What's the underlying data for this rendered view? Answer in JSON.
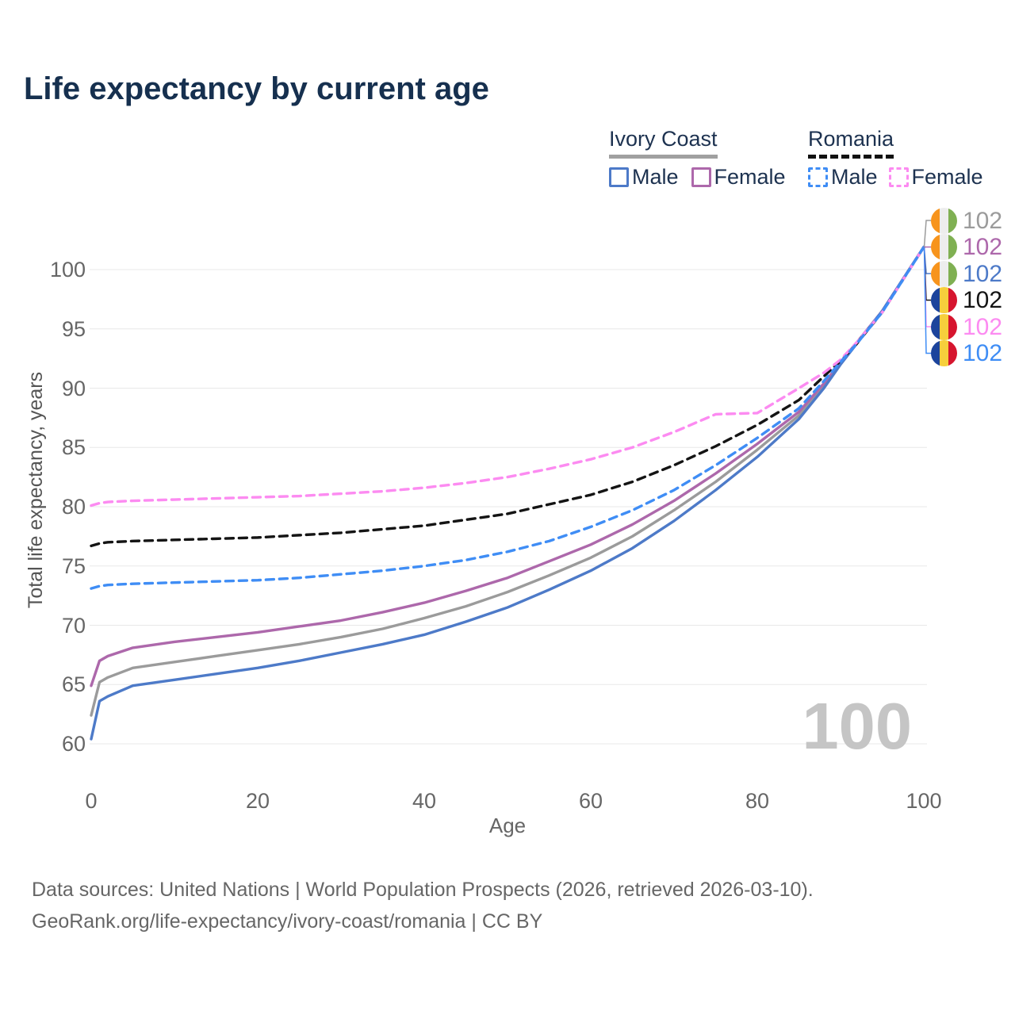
{
  "title": "Life expectancy by current age",
  "watermark": "100",
  "legend": {
    "groups": [
      {
        "name": "Ivory Coast",
        "style": "solid",
        "items": [
          {
            "label": "Male",
            "color": "#4d7ac8"
          },
          {
            "label": "Female",
            "color": "#ad68ab"
          }
        ]
      },
      {
        "name": "Romania",
        "style": "dashed",
        "items": [
          {
            "label": "Male",
            "color": "#3f8df5"
          },
          {
            "label": "Female",
            "color": "#fc8bf1"
          }
        ]
      }
    ]
  },
  "flags": {
    "ivory_coast": [
      "#f7941d",
      "#ededed",
      "#7fb052"
    ],
    "romania": [
      "#1c449c",
      "#f6cf3c",
      "#d6152e"
    ]
  },
  "chart_data": {
    "type": "line",
    "title": "Life expectancy by current age",
    "xlabel": "Age",
    "ylabel": "Total life expectancy, years",
    "xlim": [
      0,
      100
    ],
    "ylim": [
      58,
      103
    ],
    "x_ticks": [
      0,
      20,
      40,
      60,
      80,
      100
    ],
    "y_ticks": [
      60,
      65,
      70,
      75,
      80,
      85,
      90,
      95,
      100
    ],
    "grid": "horizontal",
    "legend_position": "top-right",
    "age_indicator": "100",
    "x": [
      0,
      1,
      2,
      5,
      10,
      15,
      20,
      25,
      30,
      35,
      40,
      45,
      50,
      55,
      60,
      65,
      70,
      75,
      80,
      85,
      88,
      90,
      92,
      95,
      100
    ],
    "series": [
      {
        "name": "Ivory Coast — Both sexes",
        "country": "Ivory Coast",
        "sex": "Both",
        "flag": "ivory_coast",
        "style": "solid",
        "color": "#9b9b9b",
        "end_label": "102",
        "values": [
          62.4,
          65.2,
          65.6,
          66.4,
          66.9,
          67.4,
          67.9,
          68.4,
          69.0,
          69.7,
          70.6,
          71.6,
          72.8,
          74.2,
          75.7,
          77.5,
          79.7,
          82.1,
          84.8,
          87.7,
          90.2,
          92.1,
          93.8,
          96.5,
          101.9
        ]
      },
      {
        "name": "Ivory Coast — Female",
        "country": "Ivory Coast",
        "sex": "Female",
        "flag": "ivory_coast",
        "style": "solid",
        "color": "#ad68ab",
        "end_label": "102",
        "values": [
          64.9,
          67.0,
          67.4,
          68.1,
          68.6,
          69.0,
          69.4,
          69.9,
          70.4,
          71.1,
          71.9,
          72.9,
          74.0,
          75.4,
          76.8,
          78.5,
          80.5,
          82.8,
          85.3,
          88.0,
          90.4,
          92.2,
          93.9,
          96.5,
          101.9
        ]
      },
      {
        "name": "Ivory Coast — Male",
        "country": "Ivory Coast",
        "sex": "Male",
        "flag": "ivory_coast",
        "style": "solid",
        "color": "#4d7ac8",
        "end_label": "102",
        "values": [
          60.4,
          63.6,
          64.0,
          64.9,
          65.4,
          65.9,
          66.4,
          67.0,
          67.7,
          68.4,
          69.2,
          70.3,
          71.5,
          73.0,
          74.6,
          76.5,
          78.8,
          81.4,
          84.2,
          87.4,
          90.0,
          92.0,
          93.8,
          96.5,
          101.9
        ]
      },
      {
        "name": "Romania — Both sexes",
        "country": "Romania",
        "sex": "Both",
        "flag": "romania",
        "style": "dashed",
        "color": "#141414",
        "end_label": "102",
        "values": [
          76.7,
          76.9,
          77.0,
          77.1,
          77.2,
          77.3,
          77.4,
          77.6,
          77.8,
          78.1,
          78.4,
          78.9,
          79.4,
          80.2,
          81.0,
          82.1,
          83.5,
          85.1,
          86.9,
          89.0,
          91.0,
          92.3,
          93.8,
          96.4,
          101.9
        ]
      },
      {
        "name": "Romania — Female",
        "country": "Romania",
        "sex": "Female",
        "flag": "romania",
        "style": "dashed",
        "color": "#fc8bf1",
        "end_label": "102",
        "values": [
          80.1,
          80.3,
          80.4,
          80.5,
          80.6,
          80.7,
          80.8,
          80.9,
          81.1,
          81.3,
          81.6,
          82.0,
          82.5,
          83.2,
          84.0,
          85.0,
          86.3,
          87.8,
          87.9,
          90.0,
          91.3,
          92.4,
          93.9,
          96.4,
          101.9
        ]
      },
      {
        "name": "Romania — Male",
        "country": "Romania",
        "sex": "Male",
        "flag": "romania",
        "style": "dashed",
        "color": "#3f8df5",
        "end_label": "102",
        "values": [
          73.1,
          73.3,
          73.4,
          73.5,
          73.6,
          73.7,
          73.8,
          74.0,
          74.3,
          74.6,
          75.0,
          75.5,
          76.2,
          77.1,
          78.3,
          79.7,
          81.4,
          83.5,
          85.8,
          88.3,
          90.6,
          92.2,
          93.8,
          96.4,
          101.9
        ]
      }
    ]
  },
  "footer": {
    "line1": "Data sources: United Nations | World Population Prospects (2026, retrieved 2026-03-10).",
    "line2": "GeoRank.org/life-expectancy/ivory-coast/romania | CC BY"
  }
}
